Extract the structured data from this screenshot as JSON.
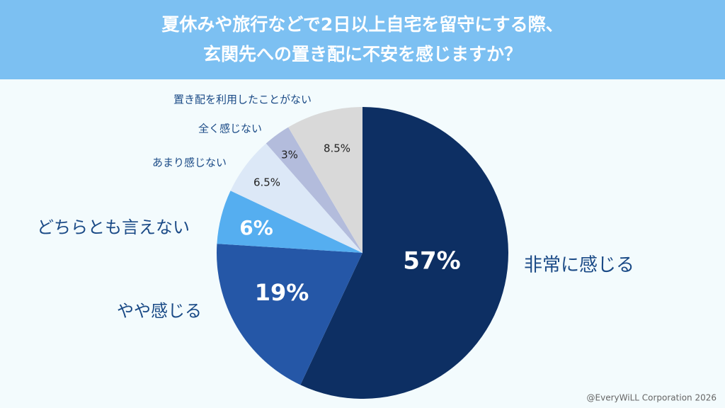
{
  "chart_data": {
    "type": "pie",
    "title": [
      "夏休みや旅行などで2日以上自宅を留守にする際、",
      "玄関先への置き配に不安を感じますか？"
    ],
    "categories": [
      "非常に感じる",
      "やや感じる",
      "どちらとも言えない",
      "あまり感じない",
      "全く感じない",
      "置き配を利用したことがない"
    ],
    "values": [
      57,
      19,
      6,
      6.5,
      3,
      8.5
    ],
    "value_labels": [
      "57%",
      "19%",
      "6%",
      "6.5%",
      "3%",
      "8.5%"
    ],
    "colors": [
      "#0d2f63",
      "#2557a7",
      "#55aef0",
      "#dce8f7",
      "#b3bcdc",
      "#d9d9d9"
    ],
    "credit": "@EveryWiLL Corporation 2026"
  }
}
